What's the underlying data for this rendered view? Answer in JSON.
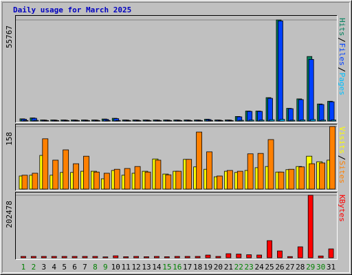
{
  "chart_data": [
    {
      "type": "bar",
      "title": "Daily usage for March 2025",
      "ylim": [
        0,
        55767
      ],
      "yticks": [
        55767
      ],
      "series": [
        {
          "name": "Hits",
          "color": "#00805c",
          "values": [
            1200,
            1700,
            600,
            600,
            600,
            600,
            600,
            600,
            1100,
            1500,
            600,
            600,
            600,
            600,
            600,
            600,
            600,
            600,
            1000,
            600,
            600,
            2500,
            5500,
            5500,
            12900,
            55767,
            7000,
            12200,
            35600,
            9400,
            10900
          ]
        },
        {
          "name": "Files",
          "color": "#0040ff",
          "values": [
            1000,
            1500,
            500,
            500,
            500,
            500,
            500,
            500,
            900,
            1300,
            500,
            500,
            500,
            500,
            500,
            500,
            500,
            500,
            800,
            500,
            500,
            2300,
            5300,
            5300,
            12500,
            55200,
            6800,
            11800,
            34000,
            9100,
            10600
          ]
        },
        {
          "name": "Pages",
          "color": "#00c0ff",
          "values": [
            300,
            350,
            250,
            250,
            250,
            250,
            250,
            250,
            300,
            300,
            250,
            250,
            250,
            250,
            250,
            250,
            250,
            250,
            300,
            250,
            250,
            400,
            500,
            500,
            700,
            900,
            450,
            600,
            800,
            500,
            550
          ]
        }
      ]
    },
    {
      "type": "bar",
      "ylim": [
        0,
        158
      ],
      "yticks": [
        158
      ],
      "series": [
        {
          "name": "Visits",
          "color": "#ffff00",
          "values": [
            33,
            35,
            85,
            35,
            42,
            42,
            45,
            45,
            26,
            47,
            35,
            40,
            45,
            76,
            38,
            45,
            75,
            56,
            50,
            31,
            45,
            42,
            47,
            54,
            57,
            43,
            49,
            57,
            83,
            69,
            73
          ]
        },
        {
          "name": "Sites",
          "color": "#ff8000",
          "values": [
            35,
            40,
            127,
            73,
            99,
            64,
            83,
            43,
            40,
            50,
            52,
            57,
            43,
            73,
            36,
            45,
            75,
            144,
            94,
            33,
            47,
            45,
            89,
            90,
            125,
            43,
            50,
            56,
            64,
            66,
            158
          ]
        }
      ]
    },
    {
      "type": "bar",
      "ylim": [
        0,
        202478
      ],
      "yticks": [
        202478
      ],
      "categories": [
        "1",
        "2",
        "3",
        "4",
        "5",
        "6",
        "7",
        "8",
        "9",
        "10",
        "11",
        "12",
        "13",
        "14",
        "15",
        "16",
        "17",
        "18",
        "19",
        "20",
        "21",
        "22",
        "23",
        "24",
        "25",
        "26",
        "27",
        "28",
        "29",
        "30",
        "31"
      ],
      "label_colors": [
        "#008000",
        "#008000",
        "#000000",
        "#000000",
        "#000000",
        "#000000",
        "#000000",
        "#008000",
        "#008000",
        "#000000",
        "#000000",
        "#000000",
        "#000000",
        "#000000",
        "#008000",
        "#008000",
        "#000000",
        "#000000",
        "#000000",
        "#000000",
        "#000000",
        "#008000",
        "#008000",
        "#000000",
        "#000000",
        "#000000",
        "#000000",
        "#000000",
        "#008000",
        "#008000",
        "#000000"
      ],
      "series": [
        {
          "name": "KBytes",
          "color": "#ff0000",
          "values": [
            4500,
            4500,
            4500,
            4500,
            4500,
            4500,
            4500,
            4500,
            3000,
            6500,
            3500,
            4500,
            3500,
            4500,
            3500,
            4500,
            4500,
            4500,
            8900,
            4500,
            13350,
            12000,
            10000,
            9000,
            55600,
            22250,
            4000,
            35600,
            202478,
            6000,
            28900
          ]
        }
      ]
    }
  ]
}
